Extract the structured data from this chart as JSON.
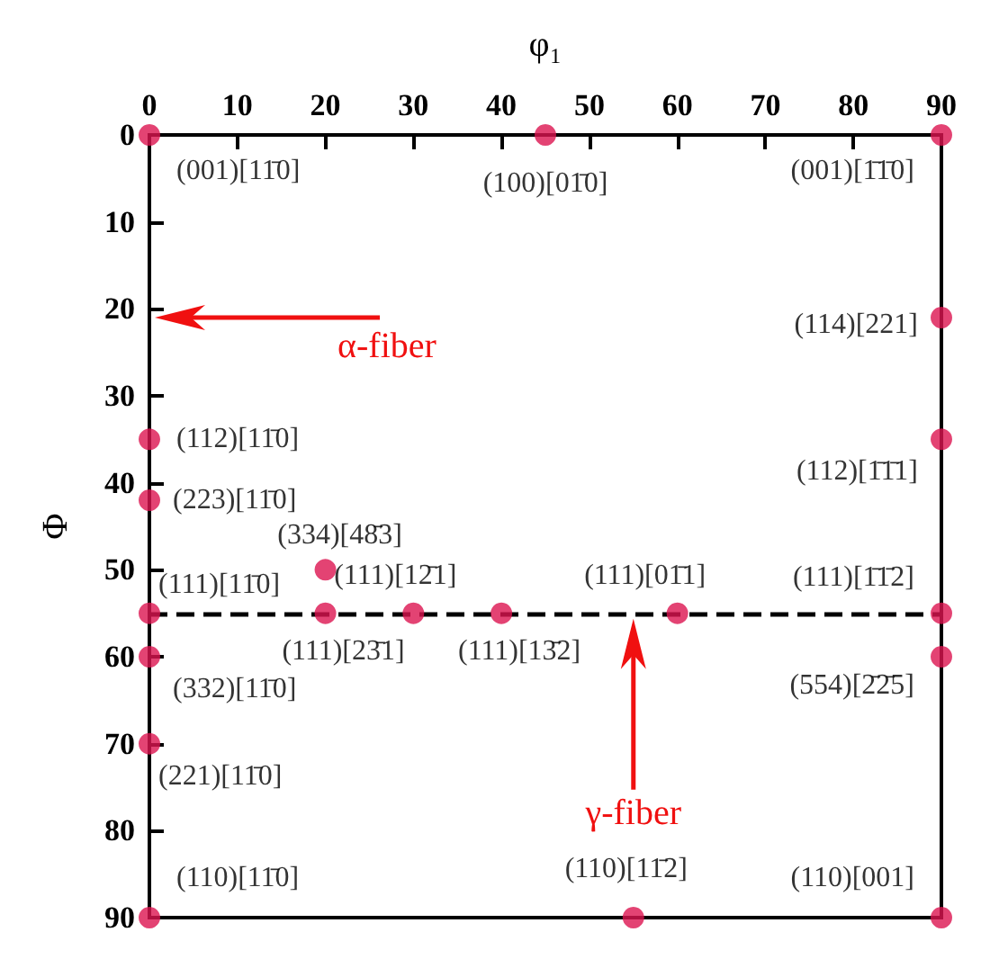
{
  "chart_data": {
    "type": "scatter",
    "xlabel": "φ₁",
    "ylabel": "Φ",
    "x": [
      0,
      45,
      90,
      90,
      0,
      90,
      0,
      20,
      0,
      20,
      30,
      40,
      60,
      90,
      0,
      90,
      0,
      0,
      55,
      90
    ],
    "series": [
      {
        "color": "#dc1450",
        "values": [
          0,
          0,
          0,
          21,
          35,
          35,
          42,
          50,
          55,
          55,
          55,
          55,
          55,
          55,
          60,
          60,
          70,
          90,
          90,
          90
        ],
        "value_labels": [
          "(001)[11̄0]",
          "(100)[01̄0]",
          "(001)[1̄1̄0]",
          "(114)[221]",
          "(112)[11̄0]",
          "(112)[1̄1̄1]",
          "(223)[11̄0]",
          "(334)[48̄3]",
          "(111)[11̄0]",
          "(111)[23̄1]",
          "(111)[12̄1]",
          "(111)[13̄2]",
          "(111)[01̄1]",
          "(111)[1̄1̄2]",
          "(332)[11̄0]",
          "(554)[2̄2̄5]",
          "(221)[11̄0]",
          "(110)[11̄0]",
          "(110)[11̄2]",
          "(110)[001]"
        ]
      }
    ],
    "xlim": [
      0,
      90
    ],
    "xticks": [
      0,
      10,
      20,
      30,
      40,
      50,
      60,
      70,
      80,
      90
    ],
    "ylim": [
      90,
      0
    ],
    "yticks": [
      0,
      10,
      20,
      30,
      40,
      50,
      60,
      70,
      80,
      90
    ],
    "ref_lines": [
      {
        "axis": "y",
        "value": 55,
        "color": "#000000",
        "line_style": "dashed"
      }
    ],
    "annotations": [
      "α-fiber",
      "γ-fiber"
    ],
    "grid": false,
    "marker": "circle"
  }
}
